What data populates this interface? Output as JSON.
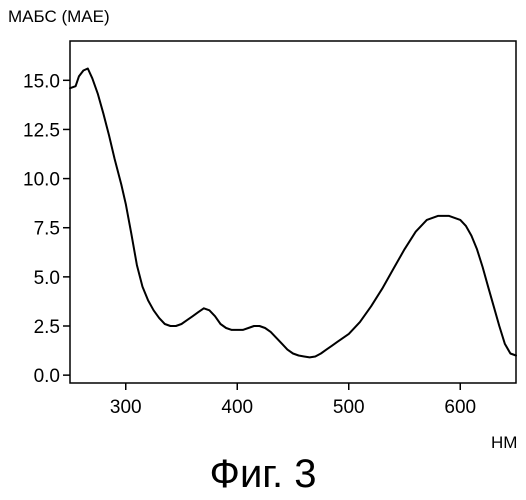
{
  "chart_data": {
    "type": "line",
    "ylabel": "МАБС (МАЕ)",
    "xlabel": "НМ",
    "xlim": [
      250,
      650
    ],
    "ylim": [
      -0.4,
      17.0
    ],
    "x_ticks": [
      300,
      400,
      500,
      600
    ],
    "x_tick_labels": [
      "300",
      "400",
      "500",
      "600"
    ],
    "y_ticks": [
      0.0,
      2.5,
      5.0,
      7.5,
      10.0,
      12.5,
      15.0
    ],
    "y_tick_labels": [
      "0.0",
      "2.5",
      "5.0",
      "7.5",
      "10.0",
      "12.5",
      "15.0"
    ],
    "grid": false,
    "series": [
      {
        "x": [
          250,
          255,
          258,
          262,
          266,
          270,
          275,
          280,
          285,
          290,
          296,
          300,
          305,
          310,
          315,
          320,
          325,
          330,
          335,
          340,
          345,
          350,
          355,
          360,
          365,
          370,
          375,
          380,
          385,
          390,
          395,
          400,
          405,
          410,
          415,
          420,
          425,
          430,
          435,
          440,
          445,
          450,
          455,
          460,
          465,
          470,
          475,
          480,
          485,
          490,
          495,
          500,
          510,
          520,
          530,
          540,
          550,
          560,
          570,
          580,
          590,
          600,
          605,
          610,
          615,
          620,
          625,
          630,
          635,
          640,
          645,
          650
        ],
        "y": [
          14.6,
          14.7,
          15.2,
          15.5,
          15.6,
          15.1,
          14.3,
          13.3,
          12.2,
          11.0,
          9.7,
          8.7,
          7.2,
          5.6,
          4.5,
          3.8,
          3.3,
          2.9,
          2.6,
          2.5,
          2.5,
          2.6,
          2.8,
          3.0,
          3.2,
          3.4,
          3.3,
          3.0,
          2.6,
          2.4,
          2.3,
          2.3,
          2.3,
          2.4,
          2.5,
          2.5,
          2.4,
          2.2,
          1.9,
          1.6,
          1.3,
          1.1,
          1.0,
          0.95,
          0.9,
          0.95,
          1.1,
          1.3,
          1.5,
          1.7,
          1.9,
          2.1,
          2.7,
          3.5,
          4.4,
          5.4,
          6.4,
          7.3,
          7.9,
          8.1,
          8.1,
          7.9,
          7.6,
          7.1,
          6.4,
          5.5,
          4.5,
          3.5,
          2.5,
          1.6,
          1.1,
          1.0
        ]
      }
    ]
  },
  "caption": "Фиг. 3",
  "colors": {
    "line": "#000000",
    "axis": "#000000",
    "background": "#ffffff"
  }
}
